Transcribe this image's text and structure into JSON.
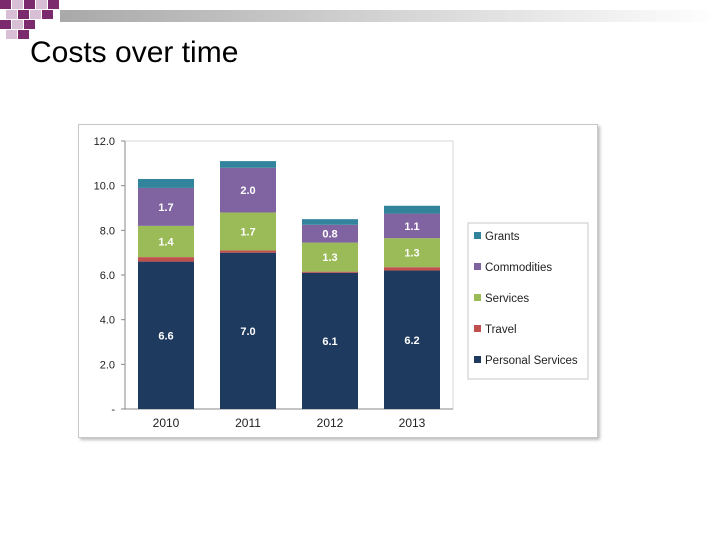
{
  "slide": {
    "title": "Costs over time"
  },
  "colors": {
    "personal_services": "#1f3a5f",
    "travel": "#c0504d",
    "services": "#9bbb59",
    "commodities": "#8064a2",
    "grants": "#31849b",
    "deco_purple": "#7b2a6e",
    "deco_light": "#d8bfd6"
  },
  "chart_data": {
    "type": "bar",
    "stacked": true,
    "categories": [
      "2010",
      "2011",
      "2012",
      "2013"
    ],
    "ylim": [
      0,
      12
    ],
    "yticks": [
      0,
      2,
      4,
      6,
      8,
      10,
      12
    ],
    "ytick_labels": [
      "-",
      "2.0",
      "4.0",
      "6.0",
      "8.0",
      "10.0",
      "12.0"
    ],
    "legend_position": "right",
    "series": [
      {
        "name": "Personal Services",
        "key": "personal_services",
        "values": [
          6.6,
          7.0,
          6.1,
          6.2
        ],
        "labels": [
          "6.6",
          "7.0",
          "6.1",
          "6.2"
        ]
      },
      {
        "name": "Travel",
        "key": "travel",
        "values": [
          0.2,
          0.1,
          0.05,
          0.15
        ],
        "labels": [
          null,
          null,
          null,
          null
        ]
      },
      {
        "name": "Services",
        "key": "services",
        "values": [
          1.4,
          1.7,
          1.3,
          1.3
        ],
        "labels": [
          "1.4",
          "1.7",
          "1.3",
          "1.3"
        ]
      },
      {
        "name": "Commodities",
        "key": "commodities",
        "values": [
          1.7,
          2.0,
          0.8,
          1.1
        ],
        "labels": [
          "1.7",
          "2.0",
          "0.8",
          "1.1"
        ]
      },
      {
        "name": "Grants",
        "key": "grants",
        "values": [
          0.4,
          0.3,
          0.25,
          0.35
        ],
        "labels": [
          null,
          null,
          null,
          null
        ]
      }
    ]
  }
}
